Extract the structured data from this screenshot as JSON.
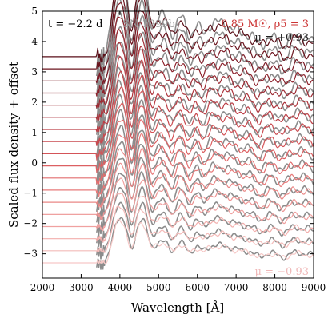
{
  "chart_data": {
    "type": "line",
    "xlabel": "Wavelength [Å]",
    "ylabel": "Scaled flux density + offset",
    "xlim": [
      2000,
      9000
    ],
    "ylim": [
      -3.8,
      5
    ],
    "x_ticks": [
      2000,
      3000,
      4000,
      5000,
      6000,
      7000,
      8000,
      9000
    ],
    "x_tick_labels": [
      "2000",
      "3000",
      "4000",
      "5000",
      "6000",
      "7000",
      "8000",
      "9000"
    ],
    "y_ticks": [
      -3,
      -2,
      -1,
      0,
      1,
      2,
      3,
      4,
      5
    ],
    "y_tick_labels": [
      "−3",
      "−2",
      "−1",
      "0",
      "1",
      "2",
      "3",
      "4",
      "5"
    ],
    "grid": false,
    "offsets": [
      3.5,
      3.1,
      2.7,
      2.3,
      1.9,
      1.5,
      1.1,
      0.7,
      0.3,
      -0.1,
      -0.5,
      -0.9,
      -1.3,
      -1.7,
      -2.1,
      -2.5,
      -2.9,
      -3.3
    ],
    "model_colors": [
      "#5a0f18",
      "#6b141e",
      "#7c1a25",
      "#8d212b",
      "#9d2a33",
      "#ad343c",
      "#bc3e46",
      "#c9494f",
      "#d45458",
      "#dc6062",
      "#e26d6e",
      "#e77a7a",
      "#ea8786",
      "#ed9493",
      "#f0a1a0",
      "#f2aeac",
      "#f4bbb9",
      "#f6c8c6"
    ],
    "observed_color": "#8c8c8c",
    "annotations": {
      "time": "t = −2.2 d",
      "observed": "SN 1999by",
      "model": "0.85 M☉, ρ5 = 3",
      "mu_top": "μ = +0.93",
      "mu_bottom": "μ = −0.93"
    },
    "colors": {
      "observed_label": "#999999",
      "model_label": "#cc3333",
      "mu_top": "#222222",
      "mu_bottom": "#f0b8b8"
    }
  }
}
